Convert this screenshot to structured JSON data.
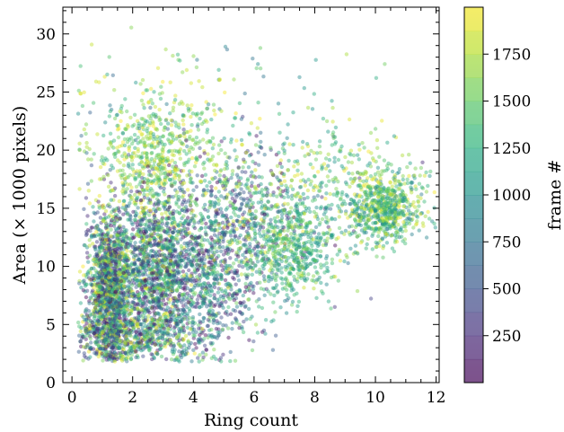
{
  "chart_data": {
    "type": "scatter",
    "title": "",
    "xlabel": "Ring count",
    "ylabel": "Area (× 1000 pixels)",
    "xlim": [
      -0.3,
      12.1
    ],
    "ylim": [
      0,
      32.3
    ],
    "xticks": [
      0,
      2,
      4,
      6,
      8,
      10,
      12
    ],
    "yticks": [
      0,
      5,
      10,
      15,
      20,
      25,
      30
    ],
    "grid": false,
    "marker_alpha": 0.45,
    "colormap": "viridis",
    "colorbar": {
      "label": "frame #",
      "range": [
        0,
        2000
      ],
      "ticks": [
        250,
        500,
        750,
        1000,
        1250,
        1500,
        1750
      ]
    },
    "point_clusters": [
      {
        "x_center": 1.2,
        "y_center": 8.0,
        "x_spread": 0.35,
        "y_spread": 3.2,
        "count": 1200,
        "frame_range": [
          0,
          2000
        ]
      },
      {
        "x_center": 2.6,
        "y_center": 10.0,
        "x_spread": 0.8,
        "y_spread": 3.5,
        "count": 1300,
        "frame_range": [
          0,
          2000
        ]
      },
      {
        "x_center": 4.2,
        "y_center": 9.0,
        "x_spread": 1.1,
        "y_spread": 3.5,
        "count": 900,
        "frame_range": [
          0,
          1600
        ]
      },
      {
        "x_center": 2.8,
        "y_center": 19.5,
        "x_spread": 1.0,
        "y_spread": 2.6,
        "count": 500,
        "frame_range": [
          1200,
          2000
        ]
      },
      {
        "x_center": 5.5,
        "y_center": 14.5,
        "x_spread": 1.6,
        "y_spread": 3.5,
        "count": 700,
        "frame_range": [
          0,
          2000
        ]
      },
      {
        "x_center": 7.2,
        "y_center": 11.5,
        "x_spread": 0.8,
        "y_spread": 2.0,
        "count": 500,
        "frame_range": [
          900,
          1700
        ]
      },
      {
        "x_center": 10.3,
        "y_center": 15.0,
        "x_spread": 0.6,
        "y_spread": 1.6,
        "count": 650,
        "frame_range": [
          800,
          2000
        ]
      },
      {
        "x_center": 8.5,
        "y_center": 17.5,
        "x_spread": 1.5,
        "y_spread": 3.0,
        "count": 250,
        "frame_range": [
          1000,
          2000
        ]
      },
      {
        "x_center": 2.0,
        "y_center": 4.0,
        "x_spread": 1.0,
        "y_spread": 1.0,
        "count": 500,
        "frame_range": [
          0,
          2000
        ]
      },
      {
        "x_center": 3.5,
        "y_center": 23.0,
        "x_spread": 2.0,
        "y_spread": 2.5,
        "count": 150,
        "frame_range": [
          600,
          2000
        ]
      }
    ]
  }
}
